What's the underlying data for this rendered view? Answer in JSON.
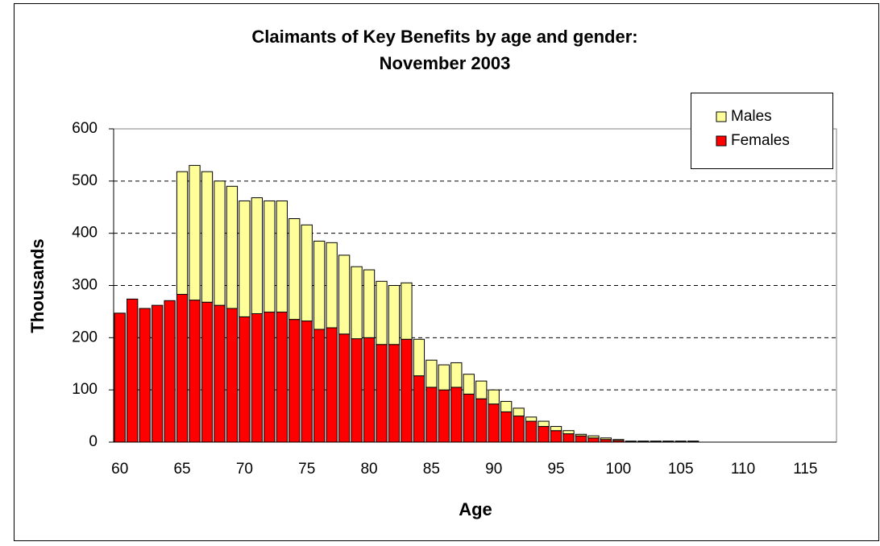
{
  "chart_data": {
    "type": "stacked_bar",
    "title": [
      "Claimants of Key Benefits by age and gender:",
      "November 2003"
    ],
    "x_label": "Age",
    "y_label": "Thousands",
    "categories": [
      60,
      null,
      null,
      null,
      null,
      65,
      null,
      null,
      null,
      null,
      70,
      null,
      null,
      null,
      null,
      75,
      null,
      null,
      null,
      null,
      80,
      null,
      null,
      null,
      null,
      85,
      null,
      null,
      null,
      null,
      90,
      null,
      null,
      null,
      null,
      95,
      null,
      null,
      null,
      null,
      100,
      null,
      null,
      null,
      null,
      105,
      null,
      null,
      null,
      null,
      110,
      null,
      null,
      null,
      null,
      115,
      null,
      null
    ],
    "series": [
      {
        "name": "Males",
        "color": "#ffff99",
        "values": [
          0,
          0,
          0,
          0,
          0,
          235,
          258,
          250,
          238,
          234,
          222,
          222,
          213,
          213,
          193,
          184,
          169,
          163,
          151,
          138,
          130,
          121,
          113,
          108,
          70,
          52,
          48,
          47,
          38,
          34,
          27,
          20,
          15,
          8,
          10,
          8,
          6,
          3,
          4,
          3,
          2,
          1,
          1,
          1,
          1,
          1,
          1,
          0,
          0,
          0,
          0,
          0,
          0,
          0,
          0,
          0,
          0,
          0
        ]
      },
      {
        "name": "Females",
        "color": "#ff0000",
        "values": [
          247,
          274,
          256,
          262,
          271,
          283,
          272,
          268,
          262,
          256,
          240,
          246,
          249,
          249,
          235,
          232,
          216,
          219,
          207,
          198,
          200,
          187,
          187,
          197,
          127,
          105,
          100,
          105,
          92,
          83,
          73,
          58,
          50,
          40,
          30,
          22,
          16,
          12,
          8,
          5,
          3,
          1,
          1,
          1,
          1,
          1,
          1,
          0,
          0,
          0,
          0,
          0,
          0,
          0,
          0,
          0,
          0,
          0
        ]
      }
    ],
    "ylim": [
      0,
      600
    ],
    "yticks": [
      0,
      100,
      200,
      300,
      400,
      500,
      600
    ],
    "grid": true,
    "legend": "top-right"
  }
}
